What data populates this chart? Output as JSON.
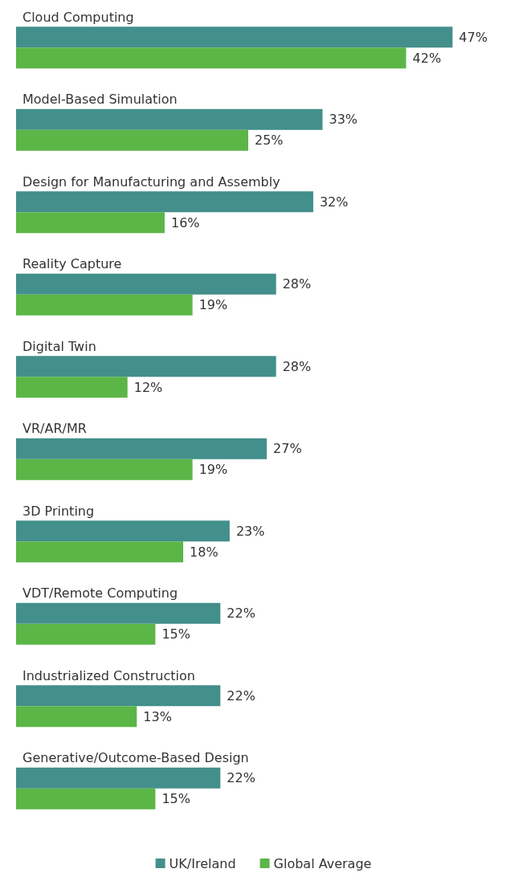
{
  "chart_data": {
    "type": "bar",
    "orientation": "horizontal",
    "categories": [
      "Cloud Computing",
      "Model-Based Simulation",
      "Design for Manufacturing and Assembly",
      "Reality Capture",
      "Digital Twin",
      "VR/AR/MR",
      "3D Printing",
      "VDT/Remote Computing",
      "Industrialized Construction",
      "Generative/Outcome-Based Design"
    ],
    "series": [
      {
        "name": "UK/Ireland",
        "color": "#438f8b",
        "values": [
          47,
          33,
          32,
          28,
          28,
          27,
          23,
          22,
          22,
          22
        ],
        "value_labels": [
          "47%",
          "33%",
          "32%",
          "28%",
          "28%",
          "27%",
          "23%",
          "22%",
          "22%",
          "22%"
        ]
      },
      {
        "name": "Global Average",
        "color": "#5bb647",
        "values": [
          42,
          25,
          16,
          19,
          12,
          19,
          18,
          15,
          13,
          15
        ],
        "value_labels": [
          "42%",
          "25%",
          "16%",
          "19%",
          "12%",
          "19%",
          "18%",
          "15%",
          "13%",
          "15%"
        ]
      }
    ],
    "legend": "bottom"
  }
}
